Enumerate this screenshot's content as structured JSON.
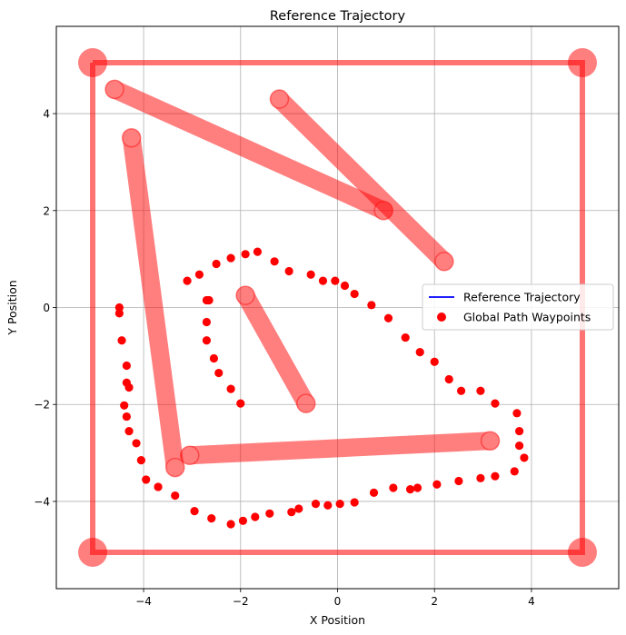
{
  "chart_data": {
    "type": "scatter",
    "title": "Reference Trajectory",
    "xlabel": "X Position",
    "ylabel": "Y Position",
    "xlim": [
      -5.8,
      5.8
    ],
    "ylim": [
      -5.8,
      5.8
    ],
    "xticks": [
      -4,
      -2,
      0,
      2,
      4
    ],
    "yticks": [
      -4,
      -2,
      0,
      2,
      4
    ],
    "grid": true,
    "legend_position": "center-right",
    "colors": {
      "waypoints": "#ff0000",
      "obstacles": "#ff0000",
      "trajectory": "#0000ff"
    },
    "series": [
      {
        "name": "Reference Trajectory",
        "kind": "line",
        "x": [],
        "y": []
      },
      {
        "name": "Global Path Waypoints",
        "kind": "scatter",
        "x": [
          -1.65,
          -1.9,
          -2.2,
          -2.5,
          -2.85,
          -3.1,
          -1.3,
          -1.0,
          -0.55,
          -0.3,
          -0.05,
          0.15,
          0.35,
          0.7,
          1.05,
          1.4,
          1.7,
          2.0,
          2.3,
          2.55,
          2.95,
          3.25,
          3.7,
          3.75,
          3.75,
          3.85,
          3.65,
          3.25,
          2.95,
          2.5,
          2.05,
          1.65,
          1.5,
          1.15,
          0.75,
          0.35,
          0.05,
          -0.2,
          -0.45,
          -0.8,
          -0.95,
          -1.4,
          -1.7,
          -1.95,
          -2.2,
          -2.6,
          -2.95,
          -3.35,
          -3.7,
          -3.95,
          -4.05,
          -4.15,
          -4.3,
          -4.35,
          -4.4,
          -4.3,
          -4.35,
          -4.35,
          -4.45,
          -4.5,
          -4.5,
          -2.0,
          -2.2,
          -2.45,
          -2.55,
          -2.7,
          -2.7,
          -2.65,
          -2.7
        ],
        "y": [
          1.15,
          1.1,
          1.02,
          0.9,
          0.68,
          0.55,
          0.95,
          0.75,
          0.68,
          0.55,
          0.55,
          0.45,
          0.28,
          0.05,
          -0.22,
          -0.62,
          -0.92,
          -1.12,
          -1.48,
          -1.72,
          -1.72,
          -1.98,
          -2.18,
          -2.55,
          -2.85,
          -3.1,
          -3.38,
          -3.48,
          -3.52,
          -3.58,
          -3.65,
          -3.72,
          -3.75,
          -3.72,
          -3.82,
          -4.02,
          -4.05,
          -4.08,
          -4.05,
          -4.15,
          -4.22,
          -4.25,
          -4.32,
          -4.4,
          -4.47,
          -4.35,
          -4.2,
          -3.88,
          -3.7,
          -3.55,
          -3.15,
          -2.8,
          -2.55,
          -2.25,
          -2.02,
          -1.65,
          -1.55,
          -1.2,
          -0.68,
          -0.12,
          0.0,
          -1.98,
          -1.68,
          -1.35,
          -1.05,
          -0.68,
          -0.3,
          0.15,
          0.15
        ]
      }
    ],
    "obstacles": {
      "boundary": [
        [
          -5.05,
          5.05
        ],
        [
          5.05,
          5.05
        ],
        [
          5.05,
          -5.05
        ],
        [
          -5.05,
          -5.05
        ]
      ],
      "segments": [
        [
          [
            -4.6,
            4.5
          ],
          [
            0.95,
            2.0
          ]
        ],
        [
          [
            -1.2,
            4.3
          ],
          [
            2.2,
            0.95
          ]
        ],
        [
          [
            -4.25,
            3.5
          ],
          [
            -3.35,
            -3.3
          ]
        ],
        [
          [
            -3.05,
            -3.05
          ],
          [
            3.15,
            -2.75
          ]
        ],
        [
          [
            -1.9,
            0.25
          ],
          [
            -0.65,
            -1.98
          ]
        ]
      ]
    }
  }
}
